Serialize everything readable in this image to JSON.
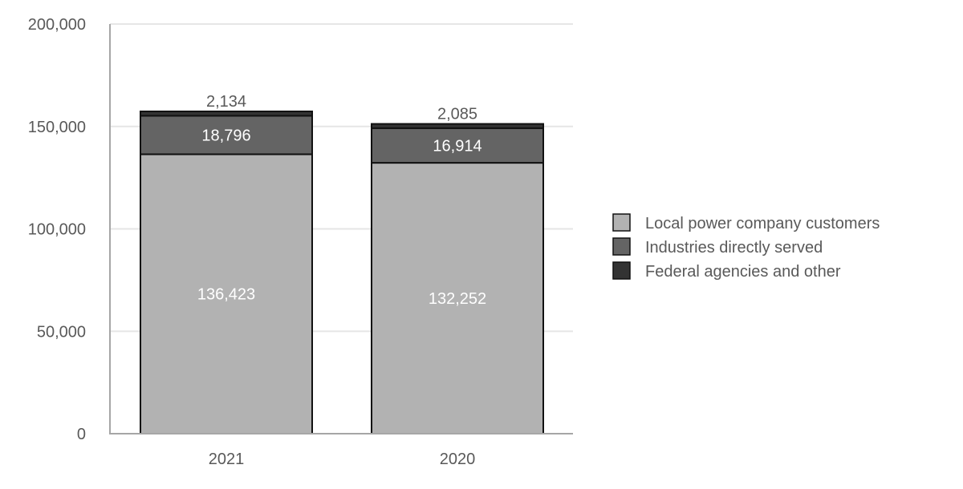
{
  "chart_data": {
    "type": "bar",
    "stacked": true,
    "categories": [
      "2021",
      "2020"
    ],
    "series": [
      {
        "name": "Local power company customers",
        "values": [
          136423,
          132252
        ],
        "color": "#b2b2b2",
        "label_color": "#ffffff",
        "labels": [
          "136,423",
          "132,252"
        ]
      },
      {
        "name": "Industries directly served",
        "values": [
          18796,
          16914
        ],
        "color": "#646464",
        "label_color": "#ffffff",
        "labels": [
          "18,796",
          "16,914"
        ]
      },
      {
        "name": "Federal agencies and other",
        "values": [
          2134,
          2085
        ],
        "color": "#333333",
        "label_color": "#595959",
        "labels": [
          "2,134",
          "2,085"
        ]
      }
    ],
    "ylim": [
      0,
      200000
    ],
    "yticks": [
      0,
      50000,
      100000,
      150000,
      200000
    ],
    "ytick_labels": [
      "0",
      "50,000",
      "100,000",
      "150,000",
      "200,000"
    ],
    "grid": true,
    "legend_position": "right",
    "title": "",
    "xlabel": "",
    "ylabel": ""
  }
}
